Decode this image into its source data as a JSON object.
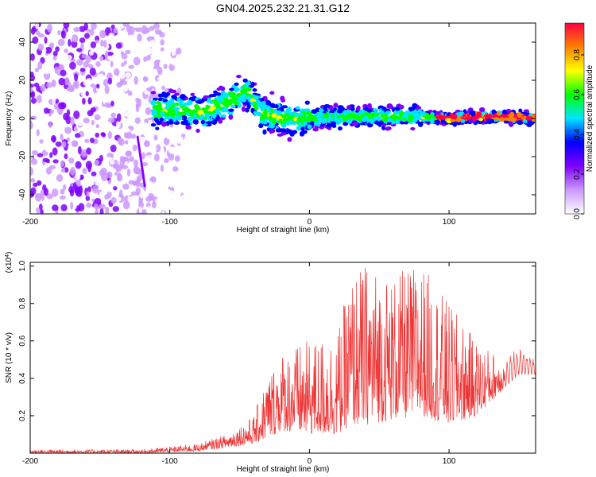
{
  "figure_title": "GN04.2025.232.21.31.G12",
  "chart_data": [
    {
      "type": "heatmap",
      "title": "",
      "xlabel": "Height of straight line (km)",
      "ylabel": "Frequency (Hz)",
      "xlim": [
        -200,
        162
      ],
      "ylim": [
        -50,
        50
      ],
      "x_ticks": [
        -200,
        -100,
        0,
        100
      ],
      "y_ticks": [
        -40,
        -20,
        0,
        20,
        40
      ],
      "colorbar": {
        "label": "Normalized spectral amplitude",
        "range": [
          0,
          0.96
        ],
        "ticks": [
          0.0,
          0.2,
          0.4,
          0.6,
          0.8
        ],
        "tick_labels": [
          "0.0",
          "0.2",
          "0.4",
          "0.6",
          "0.8"
        ],
        "colors": [
          "#ffffff",
          "#cc99ff",
          "#8000ff",
          "#0000ff",
          "#00e5ff",
          "#00ff00",
          "#ffff00",
          "#ff8000",
          "#ff0040"
        ]
      },
      "features": {
        "noise_region_x": [
          -200,
          -80
        ],
        "signal_track": {
          "x": [
            -112,
            -90,
            -75,
            -60,
            -45,
            -35,
            -20,
            0,
            20,
            50,
            80,
            100,
            120,
            140,
            162
          ],
          "y": [
            5,
            4,
            3,
            8,
            15,
            3,
            0,
            0,
            1,
            1,
            1,
            0,
            1,
            1,
            0
          ]
        },
        "streak": {
          "x": [
            -123,
            -118
          ],
          "y": [
            -10,
            -35
          ]
        }
      }
    },
    {
      "type": "line",
      "title": "",
      "xlabel": "Height of straight line (km)",
      "ylabel": "SNR (10 * v/v)",
      "y_scale_label": "(x10",
      "y_scale_exponent": "4",
      "y_scale_suffix": ")",
      "xlim": [
        -200,
        162
      ],
      "ylim": [
        0,
        1.02
      ],
      "x_ticks": [
        -200,
        -100,
        0,
        100
      ],
      "y_ticks": [
        0.2,
        0.4,
        0.6,
        0.8,
        1.0
      ],
      "y_tick_labels": [
        "0.2",
        "0.4",
        "0.6",
        "0.8",
        "1.0"
      ],
      "color": "#ee3333",
      "envelope": {
        "x": [
          -200,
          -120,
          -80,
          -60,
          -40,
          -30,
          -20,
          0,
          20,
          30,
          40,
          60,
          80,
          100,
          120,
          140,
          150,
          162
        ],
        "low": [
          0.0,
          0.0,
          0.01,
          0.03,
          0.05,
          0.08,
          0.12,
          0.1,
          0.1,
          0.15,
          0.15,
          0.18,
          0.2,
          0.15,
          0.2,
          0.35,
          0.42,
          0.42
        ],
        "high": [
          0.02,
          0.02,
          0.05,
          0.1,
          0.2,
          0.42,
          0.55,
          0.6,
          0.65,
          0.95,
          1.02,
          0.95,
          1.02,
          0.8,
          0.6,
          0.5,
          0.58,
          0.5
        ]
      }
    }
  ]
}
